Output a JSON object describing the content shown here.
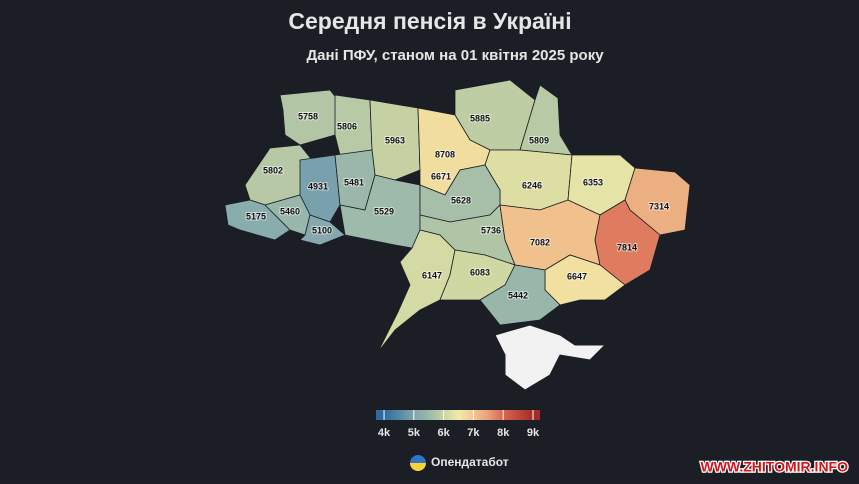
{
  "header": {
    "title": "Середня пенсія в Україні",
    "subtitle": "Дані ПФУ, станом на 01 квітня 2025 року"
  },
  "map": {
    "values": [
      5758,
      5806,
      5963,
      5885,
      5809,
      8708,
      5802,
      4931,
      5481,
      6671,
      6246,
      6353,
      5175,
      5460,
      5529,
      5628,
      7314,
      5100,
      5736,
      7082,
      7814,
      6147,
      6083,
      6647,
      5442
    ],
    "color_stops": [
      {
        "value": 4000,
        "color": "#2c6b9c"
      },
      {
        "value": 5000,
        "color": "#7fa5ae"
      },
      {
        "value": 5500,
        "color": "#9bb8aa"
      },
      {
        "value": 6000,
        "color": "#c8d3a2"
      },
      {
        "value": 6500,
        "color": "#f1eaa6"
      },
      {
        "value": 7000,
        "color": "#f2c890"
      },
      {
        "value": 7500,
        "color": "#e8a07a"
      },
      {
        "value": 8000,
        "color": "#d9674f"
      },
      {
        "value": 9000,
        "color": "#a32b2a"
      }
    ],
    "legend_range": [
      3730,
      9235
    ],
    "legend_ticks": [
      {
        "value": 4000,
        "label": "4k"
      },
      {
        "value": 5000,
        "label": "5k"
      },
      {
        "value": 6000,
        "label": "6k"
      },
      {
        "value": 7000,
        "label": "7k"
      },
      {
        "value": 8000,
        "label": "8k"
      },
      {
        "value": 9000,
        "label": "9k"
      }
    ]
  },
  "footer": {
    "source": "Опендатабот",
    "watermark": "WWW.ZHITOMIR.INFO"
  }
}
